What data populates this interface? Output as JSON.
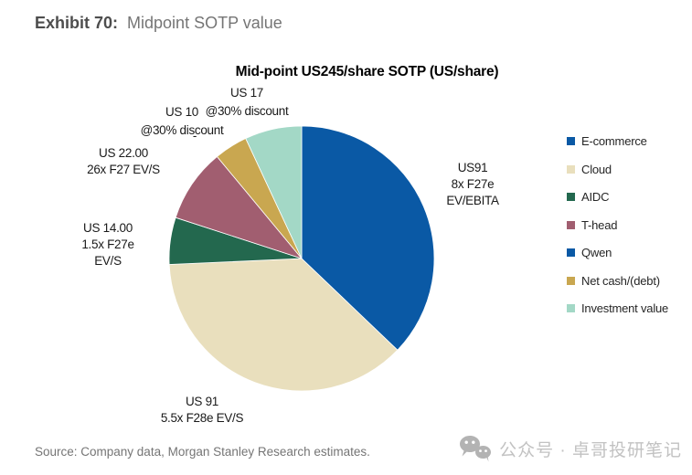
{
  "header": {
    "exhibit_number": "Exhibit 70:",
    "exhibit_title": "Midpoint SOTP value"
  },
  "chart_data": {
    "type": "pie",
    "title": "Mid-point US245/share SOTP (US/share)",
    "total": 245,
    "unit": "US$/share",
    "direction": "clockwise",
    "start_angle_deg": 0,
    "legend_position": "right",
    "segments": [
      {
        "name": "E-commerce",
        "value": 91,
        "color": "#0A59A5",
        "label": "US91 8x F27e EV/EBITA"
      },
      {
        "name": "Cloud",
        "value": 91,
        "color": "#E9DFBD",
        "label": "US 91 5.5x F28e EV/S"
      },
      {
        "name": "AIDC",
        "value": 14,
        "color": "#23684E",
        "label": "US 14.00 1.5x F27e EV/S"
      },
      {
        "name": "T-head",
        "value": 22,
        "color": "#A15E70",
        "label": "US 22.00 26x F27 EV/S"
      },
      {
        "name": "Qwen",
        "value": 0,
        "color": "#0A59A5",
        "label": "-"
      },
      {
        "name": "Net cash/(debt)",
        "value": 10,
        "color": "#C9A750",
        "label": "US 10 @30% discount"
      },
      {
        "name": "Investment value",
        "value": 17,
        "color": "#A3D8C6",
        "label": "US 17 @30% discount"
      }
    ]
  },
  "callouts": {
    "ecommerce": [
      "US91",
      "8x F27e",
      "EV/EBITA"
    ],
    "cloud": [
      "US 91",
      "5.5x F28e EV/S"
    ],
    "aidc": [
      "US 14.00",
      "1.5x F27e",
      "EV/S"
    ],
    "thead": [
      "US 22.00",
      "26x F27 EV/S"
    ],
    "qwen": [
      "-"
    ],
    "netcash": [
      "US 10",
      "@30% discount"
    ],
    "investment": [
      "US 17",
      "@30% discount"
    ]
  },
  "source": "Source: Company data, Morgan Stanley Research estimates.",
  "watermark": {
    "icon": "wechat-icon",
    "text": "公众号 · 卓哥投研笔记"
  }
}
